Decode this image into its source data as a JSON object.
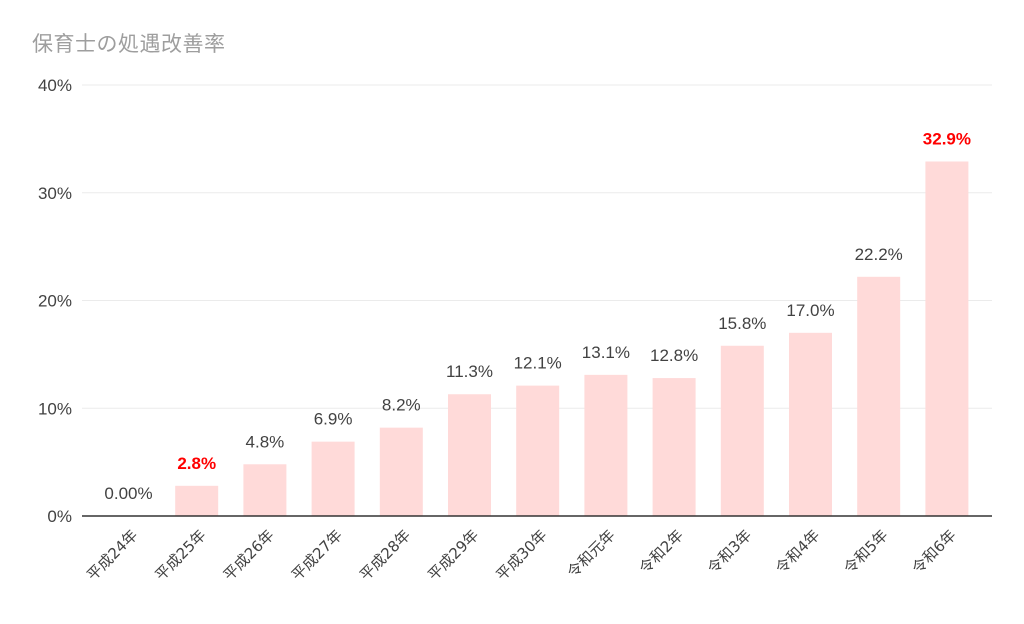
{
  "chart_data": {
    "type": "bar",
    "title": "保育士の処遇改善率",
    "categories": [
      "平成24年",
      "平成25年",
      "平成26年",
      "平成27年",
      "平成28年",
      "平成29年",
      "平成30年",
      "令和元年",
      "令和2年",
      "令和3年",
      "令和4年",
      "令和5年",
      "令和6年"
    ],
    "values": [
      0.0,
      2.8,
      4.8,
      6.9,
      8.2,
      11.3,
      12.1,
      13.1,
      12.8,
      15.8,
      17.0,
      22.2,
      32.9
    ],
    "data_labels": [
      "0.00%",
      "2.8%",
      "4.8%",
      "6.9%",
      "8.2%",
      "11.3%",
      "12.1%",
      "13.1%",
      "12.8%",
      "15.8%",
      "17.0%",
      "22.2%",
      "32.9%"
    ],
    "highlighted": [
      1,
      12
    ],
    "highlight_color": "#ff0000",
    "bar_color": "#ffdad9",
    "ylim": [
      0,
      40
    ],
    "yticks": [
      0,
      10,
      20,
      30,
      40
    ],
    "ytick_labels": [
      "0%",
      "10%",
      "20%",
      "30%",
      "40%"
    ],
    "xlabel": "",
    "ylabel": "",
    "grid": true,
    "legend": "none"
  }
}
